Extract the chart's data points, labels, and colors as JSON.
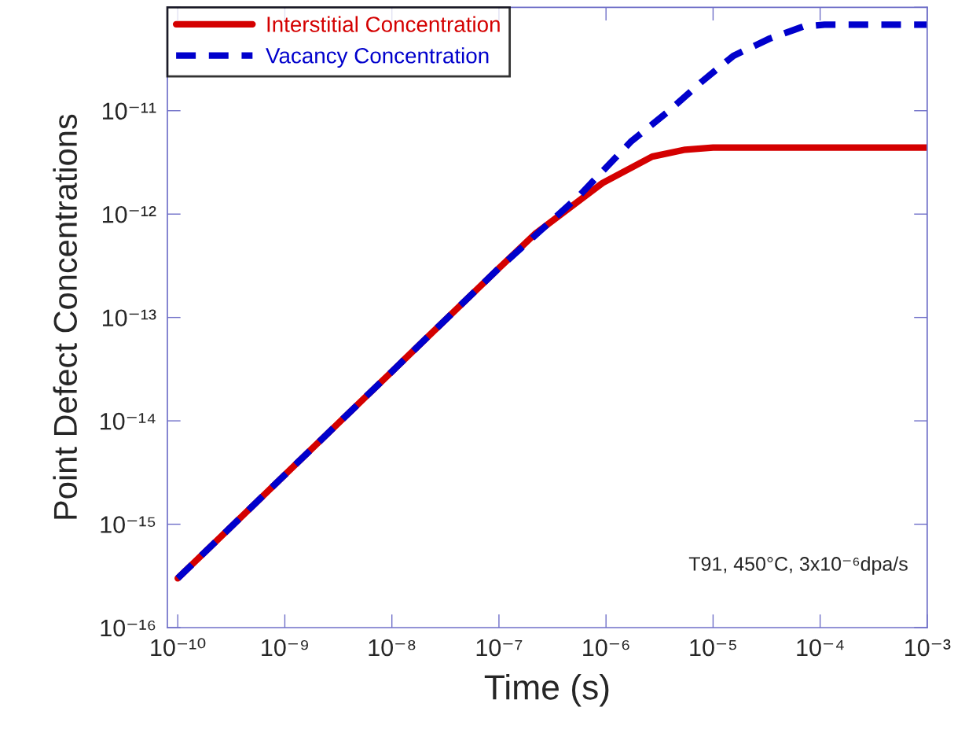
{
  "chart_data": {
    "type": "line",
    "xlabel": "Time (s)",
    "ylabel": "Point Defect Concentrations",
    "log": "xy",
    "xlim": [
      8e-11,
      0.001
    ],
    "ylim": [
      1e-16,
      1e-10
    ],
    "xticks": [
      {
        "value": 1e-10,
        "label": "10⁻¹⁰"
      },
      {
        "value": 1e-09,
        "label": "10⁻⁹"
      },
      {
        "value": 1e-08,
        "label": "10⁻⁸"
      },
      {
        "value": 1e-07,
        "label": "10⁻⁷"
      },
      {
        "value": 1e-06,
        "label": "10⁻⁶"
      },
      {
        "value": 1e-05,
        "label": "10⁻⁵"
      },
      {
        "value": 0.0001,
        "label": "10⁻⁴"
      },
      {
        "value": 0.001,
        "label": "10⁻³"
      }
    ],
    "yticks": [
      {
        "value": 1e-16,
        "label": "10⁻¹⁶"
      },
      {
        "value": 1e-15,
        "label": "10⁻¹⁵"
      },
      {
        "value": 1e-14,
        "label": "10⁻¹⁴"
      },
      {
        "value": 1e-13,
        "label": "10⁻¹³"
      },
      {
        "value": 1e-12,
        "label": "10⁻¹²"
      },
      {
        "value": 1e-11,
        "label": "10⁻¹¹"
      },
      {
        "value": 1e-10,
        "label": null
      }
    ],
    "grid": false,
    "legend": "top left",
    "marker": "none",
    "annotations": [
      "T91, 450°C, 3x10⁻⁶dpa/s"
    ],
    "series": [
      {
        "name": "Interstitial Concentration",
        "color": "#d40000",
        "line_style": "solid",
        "x": [
          1e-10,
          1e-09,
          1e-08,
          1e-07,
          2.2e-07,
          9.3e-07,
          2.7e-06,
          5.5e-06,
          1e-05,
          0.001
        ],
        "values": [
          3e-16,
          3e-15,
          3e-14,
          3e-13,
          6.5e-13,
          2e-12,
          3.6e-12,
          4.2e-12,
          4.4e-12,
          4.4e-12
        ]
      },
      {
        "name": "Vacancy Concentration",
        "color": "#0000cc",
        "line_style": "dashed",
        "x": [
          1e-10,
          1e-09,
          1e-08,
          1e-07,
          5.6e-07,
          1.7e-06,
          3.8e-06,
          7.8e-06,
          1.55e-05,
          3.4e-05,
          6.9e-05,
          0.00011,
          0.001
        ],
        "values": [
          3e-16,
          3e-15,
          3e-14,
          3e-13,
          1.5e-12,
          5e-12,
          9.8e-12,
          1.9e-11,
          3.4e-11,
          5e-11,
          6.5e-11,
          6.8e-11,
          6.8e-11
        ]
      }
    ]
  }
}
